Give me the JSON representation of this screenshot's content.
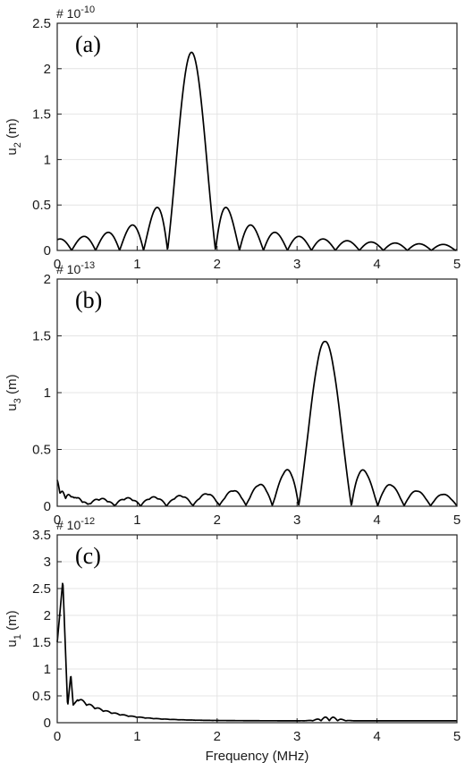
{
  "colors": {
    "line": "#000000",
    "grid": "#e4e4e4",
    "axis": "#222222"
  },
  "chart_data": [
    {
      "type": "line",
      "panel_label": "(a)",
      "ylabel_base": "u",
      "ylabel_sub": "2",
      "ylabel_unit": " (m)",
      "scale_prefix": "# 10",
      "scale_exp": "-10",
      "xlabel": "",
      "xlim": [
        0,
        5
      ],
      "ylim": [
        0,
        2.5
      ],
      "xticks": [
        "0",
        "1",
        "2",
        "3",
        "4",
        "5"
      ],
      "yticks": [
        "0",
        "0.5",
        "1",
        "1.5",
        "2",
        "2.5"
      ],
      "grid": true,
      "model": {
        "kind": "sinc",
        "center": 1.68,
        "width": 0.3,
        "amp": 2.18
      },
      "series": [
        {
          "x": [
            0.0,
            0.18,
            0.3,
            0.46,
            0.58,
            0.74,
            0.86,
            1.0,
            1.14,
            1.29,
            1.39,
            1.68,
            1.98,
            2.09,
            2.22,
            2.36,
            2.51,
            2.66,
            2.81,
            3.0,
            3.3,
            3.6,
            4.0,
            4.4,
            5.0
          ],
          "y": [
            0.0,
            0.15,
            0.0,
            0.17,
            0.0,
            0.2,
            0.0,
            0.28,
            0.0,
            0.47,
            0.0,
            2.18,
            0.0,
            0.46,
            0.0,
            0.28,
            0.0,
            0.2,
            0.0,
            0.13,
            0.08,
            0.06,
            0.04,
            0.02,
            0.01
          ]
        }
      ]
    },
    {
      "type": "line",
      "panel_label": "(b)",
      "ylabel_base": "u",
      "ylabel_sub": "3",
      "ylabel_unit": " (m)",
      "scale_prefix": "# 10",
      "scale_exp": "-13",
      "xlabel": "",
      "xlim": [
        0,
        5
      ],
      "ylim": [
        0,
        2
      ],
      "xticks": [
        "0",
        "1",
        "2",
        "3",
        "4",
        "5"
      ],
      "yticks": [
        "0",
        "0.5",
        "1",
        "1.5",
        "2"
      ],
      "grid": true,
      "model": {
        "kind": "sinc_lowfreq",
        "center": 3.35,
        "width": 0.33,
        "amp": 1.45,
        "low_amp": 0.21
      },
      "series": [
        {
          "x": [
            0.0,
            0.05,
            0.1,
            0.14,
            0.2,
            0.3,
            0.5,
            1.0,
            2.0,
            2.9,
            3.02,
            3.05,
            3.35,
            3.68,
            3.75,
            3.85,
            4.2,
            5.0
          ],
          "y": [
            0.05,
            0.21,
            0.12,
            0.17,
            0.06,
            0.03,
            0.03,
            0.02,
            0.01,
            0.05,
            0.13,
            0.0,
            1.45,
            0.0,
            0.15,
            0.1,
            0.03,
            0.01
          ]
        }
      ]
    },
    {
      "type": "line",
      "panel_label": "(c)",
      "ylabel_base": "u",
      "ylabel_sub": "1",
      "ylabel_unit": " (m)",
      "scale_prefix": "# 10",
      "scale_exp": "-12",
      "xlabel": "Frequency (MHz)",
      "xlim": [
        0,
        5
      ],
      "ylim": [
        0,
        3.5
      ],
      "xticks": [
        "0",
        "1",
        "2",
        "3",
        "4",
        "5"
      ],
      "yticks": [
        "0",
        "0.5",
        "1",
        "1.5",
        "2",
        "2.5",
        "3",
        "3.5"
      ],
      "grid": true,
      "model": {
        "kind": "decay"
      },
      "series": [
        {
          "x": [
            0.0,
            0.07,
            0.13,
            0.17,
            0.2,
            0.25,
            0.4,
            0.6,
            1.0,
            2.0,
            3.0,
            3.4,
            3.6,
            4.0,
            5.0
          ],
          "y": [
            1.5,
            2.65,
            0.3,
            0.9,
            0.33,
            0.42,
            0.25,
            0.18,
            0.11,
            0.06,
            0.04,
            0.1,
            0.05,
            0.03,
            0.02
          ]
        }
      ]
    }
  ]
}
